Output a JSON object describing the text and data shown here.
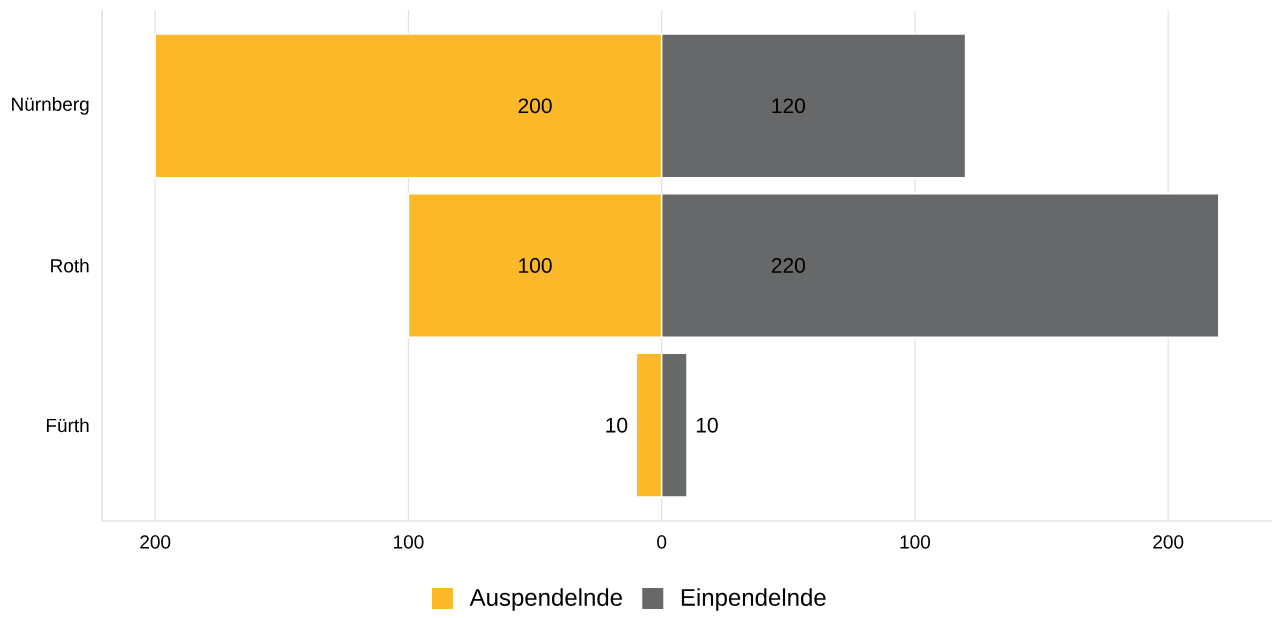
{
  "chart_data": [
    {
      "type": "bar",
      "orientation": "horizontal",
      "categories": [
        "Nürnberg",
        "Roth",
        "Fürth"
      ],
      "series": [
        {
          "name": "Auspendelnde",
          "color": "#fbb829",
          "values": [
            200,
            100,
            10
          ]
        }
      ],
      "data_labels": true,
      "xlim": [
        221,
        0
      ],
      "xticks": [
        200,
        100
      ],
      "grid": "x",
      "legend": "bottom"
    },
    {
      "type": "bar",
      "orientation": "horizontal",
      "categories": [
        null,
        null,
        null
      ],
      "series": [
        {
          "name": "Einpendelnde",
          "color": "#666869",
          "values": [
            120,
            220,
            10
          ]
        }
      ],
      "data_labels": true,
      "xlim": [
        0,
        241
      ],
      "xticks": [
        0,
        100,
        200
      ],
      "grid": "x",
      "legend": "bottom"
    }
  ]
}
